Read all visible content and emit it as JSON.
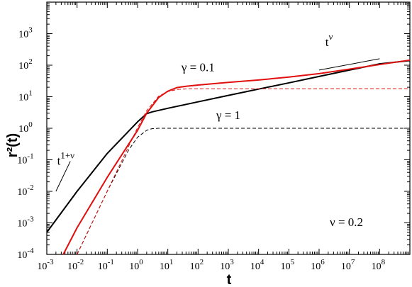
{
  "chart_data": {
    "type": "line",
    "xlabel": "t",
    "ylabel": "r²(t)",
    "x_scale": "log",
    "y_scale": "log",
    "xlim": [
      0.001,
      1000000000
    ],
    "ylim": [
      0.0001,
      10000
    ],
    "x_ticks": [
      {
        "base": "10",
        "exp": "-3",
        "value": 0.001
      },
      {
        "base": "10",
        "exp": "-2",
        "value": 0.01
      },
      {
        "base": "10",
        "exp": "-1",
        "value": 0.1
      },
      {
        "base": "10",
        "exp": "0",
        "value": 1
      },
      {
        "base": "10",
        "exp": "1",
        "value": 10
      },
      {
        "base": "10",
        "exp": "2",
        "value": 100
      },
      {
        "base": "10",
        "exp": "3",
        "value": 1000
      },
      {
        "base": "10",
        "exp": "4",
        "value": 10000
      },
      {
        "base": "10",
        "exp": "5",
        "value": 100000
      },
      {
        "base": "10",
        "exp": "6",
        "value": 1000000
      },
      {
        "base": "10",
        "exp": "7",
        "value": 10000000
      },
      {
        "base": "10",
        "exp": "8",
        "value": 100000000
      }
    ],
    "y_ticks": [
      {
        "base": "10",
        "exp": "-4",
        "value": 0.0001
      },
      {
        "base": "10",
        "exp": "-3",
        "value": 0.001
      },
      {
        "base": "10",
        "exp": "-2",
        "value": 0.01
      },
      {
        "base": "10",
        "exp": "-1",
        "value": 0.1
      },
      {
        "base": "10",
        "exp": "0",
        "value": 1
      },
      {
        "base": "10",
        "exp": "1",
        "value": 10
      },
      {
        "base": "10",
        "exp": "2",
        "value": 100
      },
      {
        "base": "10",
        "exp": "3",
        "value": 1000
      }
    ],
    "series": [
      {
        "color": "#000000",
        "style": "solid",
        "points": [
          [
            0.001,
            0.0005
          ],
          [
            0.01,
            0.01
          ],
          [
            0.1,
            0.16
          ],
          [
            1,
            1.6
          ],
          [
            2,
            2.9
          ],
          [
            3,
            3.3
          ],
          [
            10,
            4.3
          ],
          [
            100,
            6.9
          ],
          [
            1000,
            11
          ],
          [
            10000,
            17.5
          ],
          [
            100000,
            27.5
          ],
          [
            1000000,
            44
          ],
          [
            10000000,
            70
          ],
          [
            100000000,
            110
          ],
          [
            1000000000,
            140
          ]
        ]
      },
      {
        "color": "#000000",
        "style": "dashed",
        "points": [
          [
            0.01,
            0.0001
          ],
          [
            0.1,
            0.0102
          ],
          [
            0.5,
            0.2
          ],
          [
            1,
            0.52
          ],
          [
            2,
            0.86
          ],
          [
            3,
            0.97
          ],
          [
            5,
            1.0
          ],
          [
            1000000000,
            1.0
          ]
        ]
      },
      {
        "color": "#e01010",
        "style": "solid",
        "points": [
          [
            0.0035,
            0.0001
          ],
          [
            0.01,
            0.0007
          ],
          [
            0.1,
            0.028
          ],
          [
            1,
            0.86
          ],
          [
            2,
            3.0
          ],
          [
            5,
            9.5
          ],
          [
            10,
            15
          ],
          [
            20,
            19.5
          ],
          [
            40,
            21.5
          ],
          [
            100,
            23.5
          ],
          [
            1000,
            28.5
          ],
          [
            10000,
            34
          ],
          [
            100000,
            42
          ],
          [
            1000000,
            54
          ],
          [
            10000000,
            75
          ],
          [
            100000000,
            105
          ],
          [
            1000000000,
            145
          ]
        ]
      },
      {
        "color": "#e01010",
        "style": "dashed",
        "points": [
          [
            0.01,
            0.0001
          ],
          [
            0.1,
            0.0102
          ],
          [
            1,
            1.05
          ],
          [
            2,
            3.6
          ],
          [
            5,
            10.5
          ],
          [
            10,
            14.5
          ],
          [
            20,
            17.0
          ],
          [
            50,
            17.9
          ],
          [
            1000000000,
            18.0
          ]
        ]
      }
    ],
    "guides": [
      {
        "points": [
          [
            0.002,
            0.01
          ],
          [
            0.006,
            0.09
          ]
        ]
      },
      {
        "points": [
          [
            1000000,
            70
          ],
          [
            100000000,
            160
          ]
        ]
      }
    ],
    "annotations": [
      {
        "id": "gamma-01",
        "text": "γ = 0.1",
        "x": 100,
        "y": 65
      },
      {
        "id": "gamma-1",
        "text": "γ = 1",
        "x": 1000,
        "y": 1.95
      },
      {
        "id": "nu",
        "text": "ν = 0.2",
        "x": 8000000,
        "y": 0.0008
      }
    ],
    "guide_labels": [
      {
        "id": "t1nu",
        "base": "t",
        "sup": "1+ν",
        "x": 0.0022,
        "y": 0.07
      },
      {
        "id": "tnu",
        "base": "t",
        "sup": "ν",
        "x": 1600000,
        "y": 400
      }
    ]
  }
}
